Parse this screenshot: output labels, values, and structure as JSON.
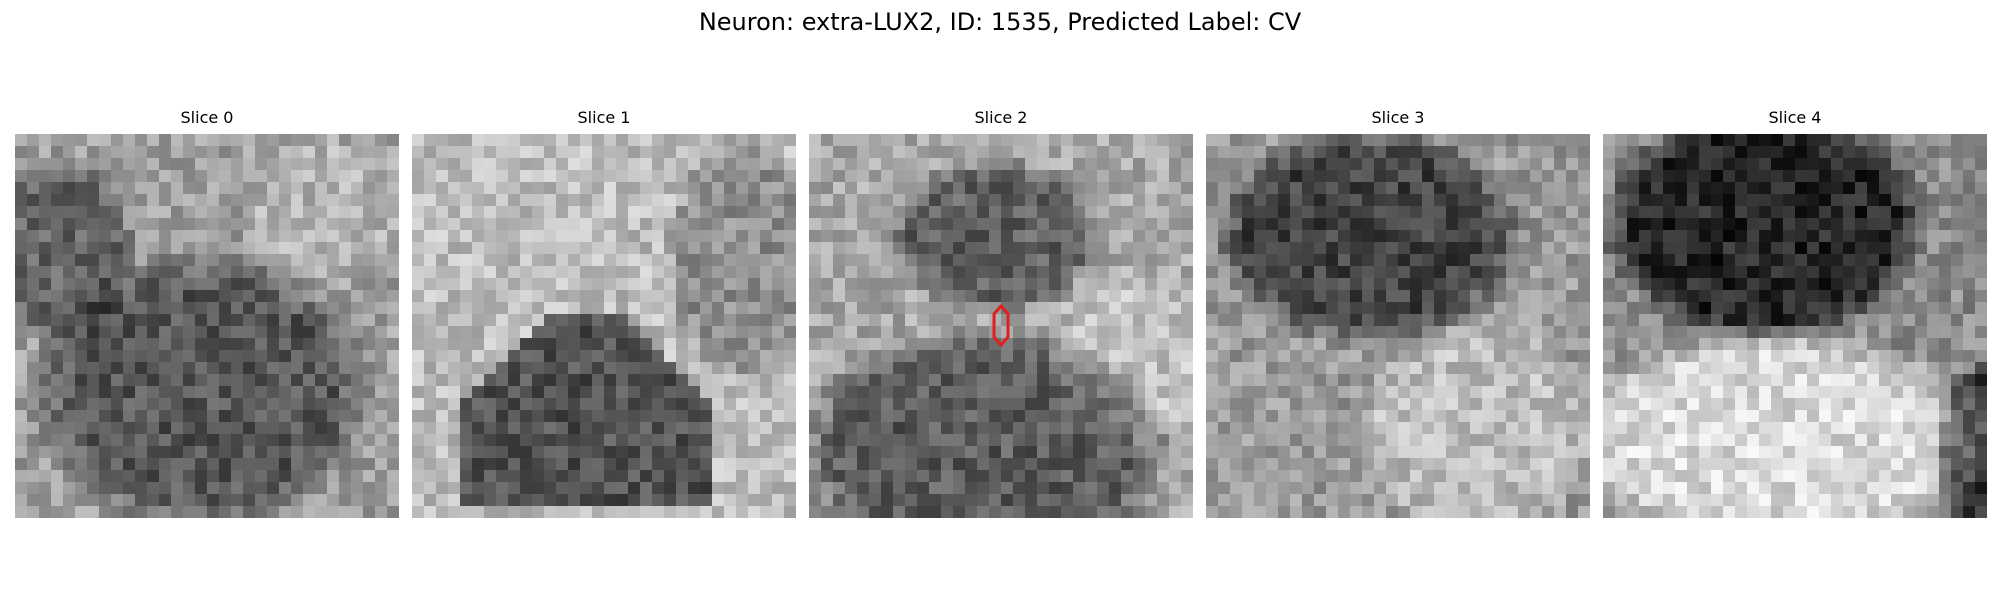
{
  "figure": {
    "title": "Neuron: extra-LUX2, ID: 1535, Predicted Label: CV"
  },
  "slices": [
    {
      "title": "Slice 0",
      "has_marker": false
    },
    {
      "title": "Slice 1",
      "has_marker": false
    },
    {
      "title": "Slice 2",
      "has_marker": true
    },
    {
      "title": "Slice 3",
      "has_marker": false
    },
    {
      "title": "Slice 4",
      "has_marker": false
    }
  ],
  "colors": {
    "marker": "#e0201c",
    "colormap": "grayscale"
  }
}
